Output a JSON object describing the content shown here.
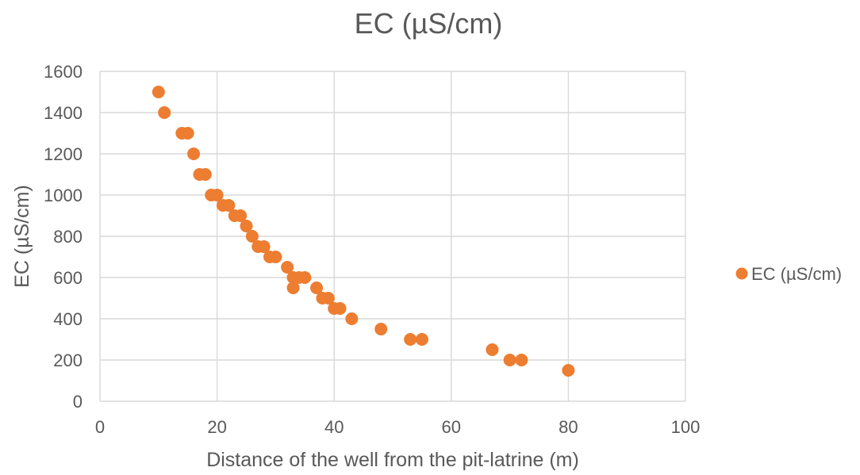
{
  "chart_data": {
    "type": "scatter",
    "title": "EC (µS/cm)",
    "xlabel": "Distance of the well from the pit-latrine (m)",
    "ylabel": "EC (µS/cm)",
    "xlim": [
      0,
      100
    ],
    "ylim": [
      0,
      1600
    ],
    "xticks": [
      0,
      20,
      40,
      60,
      80,
      100
    ],
    "yticks": [
      0,
      200,
      400,
      600,
      800,
      1000,
      1200,
      1400,
      1600
    ],
    "grid": true,
    "legend_position": "right",
    "series": [
      {
        "name": "EC (µS/cm)",
        "color": "#ED7D31",
        "points": [
          [
            10,
            1500
          ],
          [
            11,
            1400
          ],
          [
            14,
            1300
          ],
          [
            15,
            1300
          ],
          [
            16,
            1200
          ],
          [
            17,
            1100
          ],
          [
            18,
            1100
          ],
          [
            19,
            1000
          ],
          [
            20,
            1000
          ],
          [
            21,
            950
          ],
          [
            22,
            950
          ],
          [
            23,
            900
          ],
          [
            24,
            900
          ],
          [
            25,
            850
          ],
          [
            26,
            800
          ],
          [
            27,
            750
          ],
          [
            28,
            750
          ],
          [
            29,
            700
          ],
          [
            30,
            700
          ],
          [
            32,
            650
          ],
          [
            33,
            600
          ],
          [
            33,
            550
          ],
          [
            34,
            600
          ],
          [
            35,
            600
          ],
          [
            37,
            550
          ],
          [
            38,
            500
          ],
          [
            39,
            500
          ],
          [
            40,
            450
          ],
          [
            41,
            450
          ],
          [
            43,
            400
          ],
          [
            48,
            350
          ],
          [
            53,
            300
          ],
          [
            55,
            300
          ],
          [
            67,
            250
          ],
          [
            70,
            200
          ],
          [
            72,
            200
          ],
          [
            80,
            150
          ]
        ]
      }
    ]
  }
}
